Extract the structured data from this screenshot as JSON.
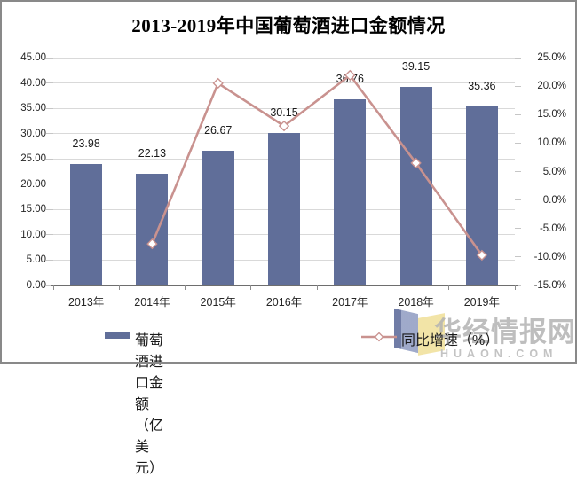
{
  "title": "2013-2019年中国葡萄酒进口金额情况",
  "chart_data": {
    "type": "bar+line",
    "categories": [
      "2013年",
      "2014年",
      "2015年",
      "2016年",
      "2017年",
      "2018年",
      "2019年"
    ],
    "series": [
      {
        "name": "葡萄酒进口金额（亿美元）",
        "type": "bar",
        "axis": "left",
        "color": "#606e99",
        "values": [
          23.98,
          22.13,
          26.67,
          30.15,
          36.76,
          39.15,
          35.36
        ],
        "value_labels": [
          "23.98",
          "22.13",
          "26.67",
          "30.15",
          "36.76",
          "39.15",
          "35.36"
        ]
      },
      {
        "name": "同比增速（%）",
        "type": "line",
        "axis": "right",
        "color": "#c9928f",
        "marker": "diamond-white",
        "values": [
          null,
          -7.7,
          20.5,
          13.0,
          21.9,
          6.5,
          -9.7
        ]
      }
    ],
    "left_axis": {
      "min": 0,
      "max": 45,
      "step": 5,
      "ticks": [
        "45.00",
        "40.00",
        "35.00",
        "30.00",
        "25.00",
        "20.00",
        "15.00",
        "10.00",
        "5.00",
        "0.00"
      ]
    },
    "right_axis": {
      "min": -15,
      "max": 25,
      "step": 5,
      "ticks": [
        "25.0%",
        "20.0%",
        "15.0%",
        "10.0%",
        "5.0%",
        "0.0%",
        "-5.0%",
        "-10.0%",
        "-15.0%"
      ]
    },
    "grid": true,
    "gridline_color": "#d9d9d9",
    "legend_position": "bottom"
  },
  "watermark": {
    "name": "华经情报网",
    "domain": "HUAON.COM"
  }
}
